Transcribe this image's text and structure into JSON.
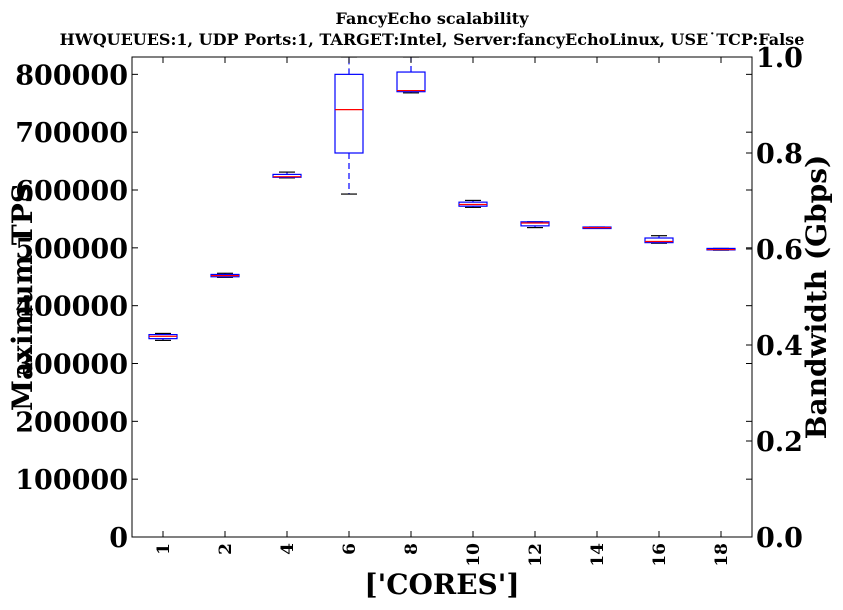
{
  "chart_data": {
    "type": "box",
    "title": "FancyEcho scalability",
    "subtitle": "HWQUEUES:1, UDP Ports:1, TARGET:Intel, Server:fancyEchoLinux, USE˙TCP:False",
    "xlabel": "['CORES']",
    "ylabel": "Maximum TPS",
    "y2label": "Bandwidth (Gbps)",
    "ylim": [
      0,
      830000
    ],
    "y2lim": [
      0,
      1.0
    ],
    "yticks": [
      "0",
      "100000",
      "200000",
      "300000",
      "400000",
      "500000",
      "600000",
      "700000",
      "800000"
    ],
    "y2ticks": [
      "0.0",
      "0.2",
      "0.4",
      "0.6",
      "0.8",
      "1.0"
    ],
    "categories": [
      "1",
      "2",
      "4",
      "6",
      "8",
      "10",
      "12",
      "14",
      "16",
      "18"
    ],
    "boxes": [
      {
        "whislo": 340000,
        "q1": 343000,
        "med": 347000,
        "q3": 350000,
        "whishi": 352000
      },
      {
        "whislo": 449000,
        "q1": 450000,
        "med": 452000,
        "q3": 454000,
        "whishi": 456000
      },
      {
        "whislo": 621000,
        "q1": 622000,
        "med": 623000,
        "q3": 627000,
        "whishi": 631000
      },
      {
        "whislo": 593000,
        "q1": 664000,
        "med": 739000,
        "q3": 800000,
        "whishi": 830000
      },
      {
        "whislo": 768000,
        "q1": 770000,
        "med": 772000,
        "q3": 804000,
        "whishi": 830000
      },
      {
        "whislo": 570000,
        "q1": 572000,
        "med": 575000,
        "q3": 579000,
        "whishi": 582000
      },
      {
        "whislo": 535000,
        "q1": 538000,
        "med": 543000,
        "q3": 545000,
        "whishi": 545000
      },
      {
        "whislo": 534000,
        "q1": 534000,
        "med": 535000,
        "q3": 536000,
        "whishi": 536000
      },
      {
        "whislo": 508000,
        "q1": 509000,
        "med": 511000,
        "q3": 517000,
        "whishi": 521000
      },
      {
        "whislo": 496000,
        "q1": 497000,
        "med": 497000,
        "q3": 499000,
        "whishi": 499000
      }
    ],
    "colors": {
      "box": "#0000ff",
      "median": "#ff0000",
      "whisker_cap": "#000000"
    }
  }
}
